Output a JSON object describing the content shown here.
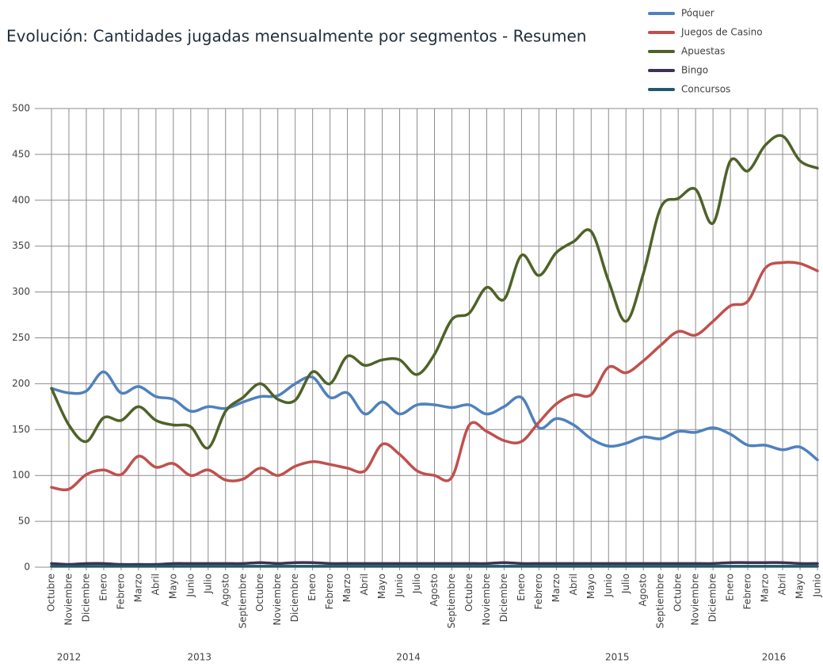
{
  "chart_data": {
    "type": "line",
    "title": "Evolución: Cantidades jugadas mensualmente por segmentos - Resumen",
    "categories": [
      "Octubre",
      "Noviembre",
      "Diciembre",
      "Enero",
      "Febrero",
      "Marzo",
      "Abril",
      "Mayo",
      "Junio",
      "Julio",
      "Agosto",
      "Septiembre",
      "Octubre",
      "Noviembre",
      "Diciembre",
      "Enero",
      "Febrero",
      "Marzo",
      "Abril",
      "Mayo",
      "Junio",
      "Julio",
      "Agosto",
      "Septiembre",
      "Octubre",
      "Noviembre",
      "Diciembre",
      "Enero",
      "Febrero",
      "Marzo",
      "Abril",
      "Mayo",
      "Junio",
      "Julio",
      "Agosto",
      "Septiembre",
      "Octubre",
      "Noviembre",
      "Diciembre",
      "Enero",
      "Febrero",
      "Marzo",
      "Abril",
      "Mayo",
      "Junio"
    ],
    "year_groups": [
      {
        "label": "2012",
        "count": 3
      },
      {
        "label": "2013",
        "count": 12
      },
      {
        "label": "2014",
        "count": 12
      },
      {
        "label": "2015",
        "count": 12
      },
      {
        "label": "2016",
        "count": 6
      }
    ],
    "series": [
      {
        "name": "Póquer",
        "color": "#4f81bd",
        "values": [
          195,
          190,
          192,
          213,
          190,
          197,
          186,
          183,
          170,
          175,
          173,
          180,
          186,
          187,
          200,
          207,
          185,
          190,
          167,
          180,
          167,
          177,
          177,
          174,
          177,
          167,
          175,
          185,
          152,
          162,
          155,
          140,
          132,
          135,
          142,
          140,
          148,
          147,
          152,
          145,
          133,
          133,
          128,
          131,
          117
        ]
      },
      {
        "name": "Juegos de Casino",
        "color": "#c0504d",
        "values": [
          87,
          85,
          101,
          106,
          101,
          121,
          109,
          113,
          100,
          106,
          95,
          96,
          108,
          100,
          110,
          115,
          112,
          108,
          105,
          134,
          123,
          105,
          100,
          98,
          155,
          148,
          138,
          137,
          158,
          178,
          188,
          188,
          218,
          212,
          225,
          242,
          257,
          253,
          268,
          285,
          290,
          326,
          332,
          331,
          323
        ]
      },
      {
        "name": "Apuestas",
        "color": "#4f6228",
        "values": [
          195,
          155,
          137,
          163,
          160,
          175,
          160,
          155,
          153,
          130,
          170,
          185,
          200,
          183,
          182,
          213,
          200,
          230,
          220,
          226,
          226,
          210,
          232,
          270,
          277,
          305,
          292,
          340,
          318,
          343,
          355,
          366,
          312,
          268,
          320,
          392,
          402,
          412,
          375,
          443,
          432,
          460,
          470,
          443,
          435
        ]
      },
      {
        "name": "Bingo",
        "color": "#3f3151",
        "values": [
          4,
          3,
          4,
          4,
          3,
          3,
          3,
          4,
          4,
          4,
          4,
          4,
          5,
          4,
          5,
          5,
          4,
          4,
          4,
          4,
          4,
          4,
          4,
          4,
          4,
          4,
          5,
          4,
          4,
          4,
          4,
          4,
          4,
          4,
          4,
          4,
          4,
          4,
          4,
          5,
          5,
          5,
          5,
          4,
          4
        ]
      },
      {
        "name": "Concursos",
        "color": "#215968",
        "values": [
          1,
          1,
          1,
          1,
          1,
          1,
          1,
          1,
          1,
          1,
          1,
          1,
          1,
          1,
          1,
          1,
          1,
          1,
          1,
          1,
          1,
          1,
          1,
          1,
          1,
          1,
          1,
          1,
          1,
          1,
          1,
          1,
          1,
          1,
          1,
          1,
          1,
          1,
          1,
          1,
          1,
          1,
          1,
          1,
          1
        ]
      }
    ],
    "ylim": [
      0,
      500
    ],
    "yticks": [
      0,
      50,
      100,
      150,
      200,
      250,
      300,
      350,
      400,
      450,
      500
    ],
    "grid": true,
    "legend": "top-right"
  }
}
